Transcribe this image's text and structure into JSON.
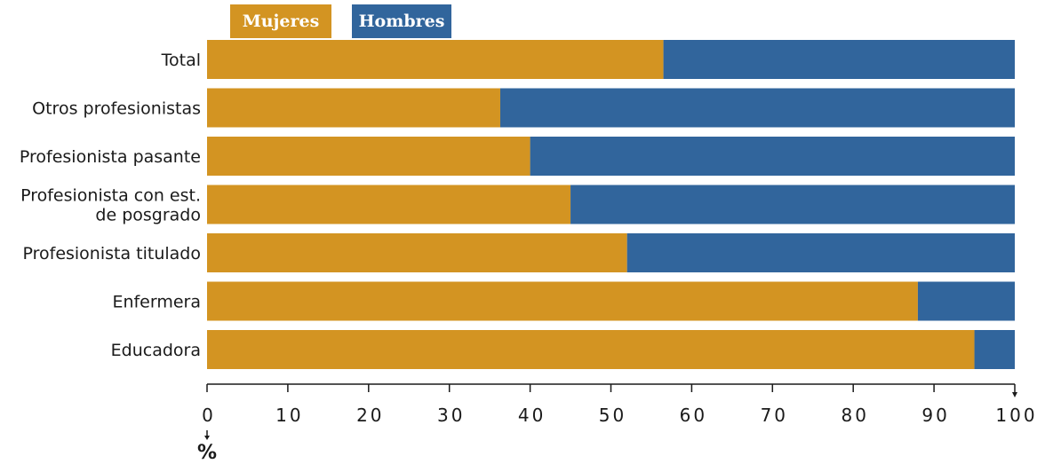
{
  "chart_data": {
    "type": "bar",
    "orientation": "horizontal",
    "stacked": true,
    "categories": [
      [
        "Total"
      ],
      [
        "Otros profesionistas"
      ],
      [
        "Profesionista pasante"
      ],
      [
        "Profesionista con est.",
        "de posgrado"
      ],
      [
        "Profesionista titulado"
      ],
      [
        "Enfermera"
      ],
      [
        "Educadora"
      ]
    ],
    "series": [
      {
        "name": "Mujeres",
        "color": "#D39422",
        "values": [
          56.5,
          36.3,
          40.0,
          45.0,
          52.0,
          88.0,
          95.0
        ]
      },
      {
        "name": "Hombres",
        "color": "#31659C",
        "values": [
          43.5,
          63.7,
          60.0,
          55.0,
          48.0,
          12.0,
          5.0
        ]
      }
    ],
    "xlim": [
      0,
      100
    ],
    "xticks": [
      "0",
      "10",
      "20",
      "30",
      "40",
      "50",
      "60",
      "70",
      "80",
      "90",
      "100"
    ],
    "unit_label": "%",
    "legend_position": "top-left",
    "grid": false
  }
}
